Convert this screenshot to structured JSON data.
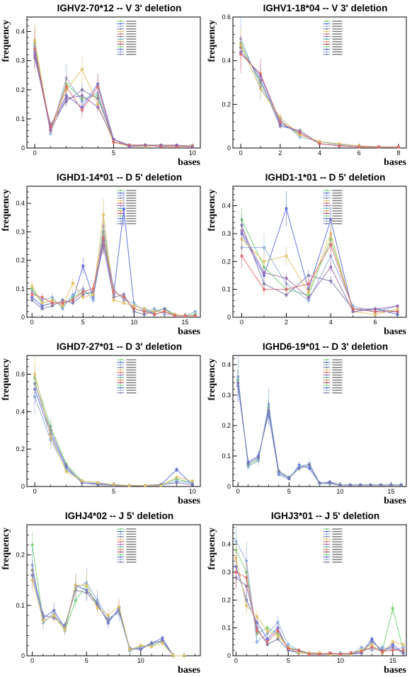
{
  "chart_data": [
    {
      "type": "line",
      "title": "IGHV2-70*12 -- V 3' deletion",
      "xlabel": "bases",
      "ylabel": "frequency",
      "xlim": [
        -0.5,
        10.5
      ],
      "ylim": [
        0,
        0.45
      ],
      "xticks": [
        0,
        5,
        10
      ],
      "yticks": [
        0,
        0.1,
        0.2,
        0.3,
        0.4
      ],
      "legend_position": "top-right",
      "x": [
        0,
        1,
        2,
        3,
        4,
        5,
        6,
        7,
        8,
        9,
        10
      ],
      "series": [
        {
          "values": [
            0.36,
            0.06,
            0.22,
            0.17,
            0.18,
            0.02,
            0.01,
            0.01,
            0.01,
            0.005,
            0.005
          ]
        },
        {
          "values": [
            0.33,
            0.07,
            0.18,
            0.14,
            0.22,
            0.03,
            0.005,
            0.01,
            0.005,
            0.005,
            0.01
          ]
        },
        {
          "values": [
            0.35,
            0.05,
            0.24,
            0.16,
            0.19,
            0.02,
            0.01,
            0.005,
            0.01,
            0.005,
            0.005
          ]
        },
        {
          "values": [
            0.31,
            0.08,
            0.16,
            0.2,
            0.17,
            0.03,
            0.01,
            0.01,
            0.005,
            0.01,
            0.005
          ]
        },
        {
          "values": [
            0.37,
            0.06,
            0.2,
            0.27,
            0.15,
            0.02,
            0.005,
            0.005,
            0.01,
            0.005,
            0.01
          ]
        },
        {
          "values": [
            0.34,
            0.07,
            0.21,
            0.13,
            0.21,
            0.02,
            0.01,
            0.01,
            0.005,
            0.005,
            0.005
          ]
        },
        {
          "values": [
            0.32,
            0.06,
            0.17,
            0.18,
            0.14,
            0.03,
            0.005,
            0.01,
            0.01,
            0.01,
            0.005
          ]
        }
      ]
    },
    {
      "type": "line",
      "title": "IGHV1-18*04 -- V 3' deletion",
      "xlabel": "bases",
      "ylabel": "frequency",
      "xlim": [
        -0.4,
        8.4
      ],
      "ylim": [
        0,
        0.6
      ],
      "xticks": [
        0,
        2,
        4,
        6,
        8
      ],
      "yticks": [
        0,
        0.2,
        0.4,
        0.6
      ],
      "legend_position": "top-right",
      "x": [
        0,
        1,
        2,
        3,
        4,
        5,
        6,
        7,
        8
      ],
      "series": [
        {
          "values": [
            0.48,
            0.3,
            0.12,
            0.06,
            0.03,
            0.015,
            0.01,
            0.005,
            0.005
          ]
        },
        {
          "values": [
            0.44,
            0.33,
            0.11,
            0.07,
            0.02,
            0.01,
            0.005,
            0.005,
            0.005
          ]
        },
        {
          "values": [
            0.5,
            0.28,
            0.13,
            0.05,
            0.03,
            0.015,
            0.01,
            0.005,
            0.005
          ]
        },
        {
          "values": [
            0.46,
            0.31,
            0.1,
            0.08,
            0.02,
            0.01,
            0.005,
            0.005,
            0.005
          ]
        },
        {
          "values": [
            0.47,
            0.27,
            0.14,
            0.06,
            0.03,
            0.02,
            0.01,
            0.005,
            0.005
          ]
        },
        {
          "values": [
            0.43,
            0.34,
            0.12,
            0.07,
            0.02,
            0.01,
            0.005,
            0.005,
            0.005
          ]
        }
      ]
    },
    {
      "type": "line",
      "title": "IGHD1-14*01 -- D 5' deletion",
      "xlabel": "bases",
      "ylabel": "frequency",
      "xlim": [
        -0.5,
        16.5
      ],
      "ylim": [
        0,
        0.46
      ],
      "xticks": [
        0,
        5,
        10,
        15
      ],
      "yticks": [
        0,
        0.1,
        0.2,
        0.3,
        0.4
      ],
      "legend_position": "top-right",
      "x": [
        0,
        1,
        2,
        3,
        4,
        5,
        6,
        7,
        8,
        9,
        10,
        11,
        12,
        13,
        14,
        15,
        16
      ],
      "series": [
        {
          "values": [
            0.1,
            0.05,
            0.06,
            0.04,
            0.07,
            0.09,
            0.08,
            0.3,
            0.09,
            0.07,
            0.03,
            0.02,
            0.02,
            0.03,
            0.01,
            0.005,
            0.01
          ]
        },
        {
          "values": [
            0.07,
            0.04,
            0.05,
            0.05,
            0.06,
            0.18,
            0.07,
            0.27,
            0.08,
            0.38,
            0.04,
            0.03,
            0.01,
            0.02,
            0.005,
            0.005,
            0.005
          ]
        },
        {
          "values": [
            0.09,
            0.06,
            0.07,
            0.03,
            0.08,
            0.1,
            0.06,
            0.32,
            0.1,
            0.06,
            0.05,
            0.02,
            0.03,
            0.01,
            0.01,
            0.005,
            0.02
          ]
        },
        {
          "values": [
            0.06,
            0.03,
            0.04,
            0.06,
            0.05,
            0.08,
            0.09,
            0.25,
            0.07,
            0.08,
            0.02,
            0.01,
            0.02,
            0.03,
            0.005,
            0.005,
            0.005
          ]
        },
        {
          "values": [
            0.11,
            0.05,
            0.06,
            0.04,
            0.12,
            0.07,
            0.08,
            0.36,
            0.06,
            0.05,
            0.04,
            0.03,
            0.02,
            0.02,
            0.01,
            0.005,
            0.005
          ]
        },
        {
          "values": [
            0.08,
            0.07,
            0.05,
            0.05,
            0.06,
            0.09,
            0.1,
            0.28,
            0.09,
            0.07,
            0.03,
            0.02,
            0.01,
            0.02,
            0.005,
            0.005,
            0.005
          ]
        }
      ]
    },
    {
      "type": "line",
      "title": "IGHD1-1*01 -- D 5' deletion",
      "xlabel": "bases",
      "ylabel": "frequency",
      "xlim": [
        -0.4,
        7.4
      ],
      "ylim": [
        0,
        0.47
      ],
      "xticks": [
        0,
        2,
        4,
        6
      ],
      "yticks": [
        0,
        0.1,
        0.2,
        0.3,
        0.4
      ],
      "legend_position": "top-right",
      "x": [
        0,
        1,
        2,
        3,
        4,
        5,
        6,
        7
      ],
      "series": [
        {
          "values": [
            0.35,
            0.18,
            0.1,
            0.08,
            0.28,
            0.03,
            0.02,
            0.02
          ]
        },
        {
          "values": [
            0.3,
            0.15,
            0.39,
            0.1,
            0.35,
            0.02,
            0.03,
            0.01
          ]
        },
        {
          "values": [
            0.25,
            0.25,
            0.12,
            0.06,
            0.22,
            0.04,
            0.02,
            0.04
          ]
        },
        {
          "values": [
            0.33,
            0.12,
            0.08,
            0.15,
            0.13,
            0.03,
            0.03,
            0.02
          ]
        },
        {
          "values": [
            0.28,
            0.2,
            0.22,
            0.09,
            0.3,
            0.02,
            0.01,
            0.03
          ]
        },
        {
          "values": [
            0.22,
            0.1,
            0.1,
            0.12,
            0.26,
            0.03,
            0.02,
            0.02
          ]
        },
        {
          "values": [
            0.31,
            0.16,
            0.14,
            0.07,
            0.18,
            0.02,
            0.03,
            0.04
          ]
        }
      ]
    },
    {
      "type": "line",
      "title": "IGHD7-27*01 -- D 3' deletion",
      "xlabel": "bases",
      "ylabel": "frequency",
      "xlim": [
        -0.5,
        10.5
      ],
      "ylim": [
        0,
        0.7
      ],
      "xticks": [
        0,
        5,
        10
      ],
      "yticks": [
        0,
        0.2,
        0.4,
        0.6
      ],
      "legend_position": "top-right",
      "x": [
        0,
        1,
        2,
        3,
        4,
        5,
        6,
        7,
        8,
        9,
        10
      ],
      "series": [
        {
          "values": [
            0.58,
            0.32,
            0.12,
            0.03,
            0.02,
            0.01,
            0.005,
            0.005,
            0.01,
            0.04,
            0.02
          ]
        },
        {
          "values": [
            0.52,
            0.28,
            0.1,
            0.02,
            0.015,
            0.01,
            0.005,
            0.005,
            0.01,
            0.09,
            0.01
          ]
        },
        {
          "values": [
            0.48,
            0.25,
            0.09,
            0.03,
            0.02,
            0.01,
            0.005,
            0.005,
            0.005,
            0.03,
            0.02
          ]
        },
        {
          "values": [
            0.55,
            0.3,
            0.11,
            0.02,
            0.01,
            0.005,
            0.005,
            0.005,
            0.01,
            0.02,
            0.01
          ]
        },
        {
          "values": [
            0.6,
            0.27,
            0.08,
            0.03,
            0.02,
            0.01,
            0.005,
            0.005,
            0.005,
            0.05,
            0.03
          ]
        }
      ]
    },
    {
      "type": "line",
      "title": "IGHD6-19*01 -- D 3' deletion",
      "xlabel": "bases",
      "ylabel": "frequency",
      "xlim": [
        -0.5,
        16.5
      ],
      "ylim": [
        0,
        0.43
      ],
      "xticks": [
        0,
        5,
        10,
        15
      ],
      "yticks": [
        0,
        0.1,
        0.2,
        0.3,
        0.4
      ],
      "legend_position": "top-right",
      "x": [
        0,
        1,
        2,
        3,
        4,
        5,
        6,
        7,
        8,
        9,
        10,
        11,
        12,
        13,
        14,
        15,
        16
      ],
      "series": [
        {
          "values": [
            0.35,
            0.07,
            0.09,
            0.26,
            0.05,
            0.03,
            0.06,
            0.07,
            0.01,
            0.01,
            0.005,
            0.005,
            0.005,
            0.005,
            0.005,
            0.005,
            0.005
          ]
        },
        {
          "values": [
            0.33,
            0.08,
            0.1,
            0.24,
            0.04,
            0.025,
            0.07,
            0.06,
            0.01,
            0.015,
            0.005,
            0.005,
            0.005,
            0.005,
            0.005,
            0.005,
            0.005
          ]
        },
        {
          "values": [
            0.36,
            0.065,
            0.085,
            0.27,
            0.045,
            0.03,
            0.065,
            0.075,
            0.01,
            0.01,
            0.005,
            0.005,
            0.005,
            0.005,
            0.005,
            0.005,
            0.005
          ]
        },
        {
          "values": [
            0.34,
            0.075,
            0.095,
            0.25,
            0.05,
            0.028,
            0.06,
            0.07,
            0.012,
            0.012,
            0.005,
            0.005,
            0.005,
            0.005,
            0.005,
            0.005,
            0.005
          ]
        }
      ]
    },
    {
      "type": "line",
      "title": "IGHJ4*02 -- J 5' deletion",
      "xlabel": "bases",
      "ylabel": "frequency",
      "xlim": [
        -0.5,
        15.5
      ],
      "ylim": [
        0,
        0.26
      ],
      "xticks": [
        0,
        5,
        10
      ],
      "yticks": [
        0,
        0.1,
        0.2
      ],
      "legend_position": "top-right",
      "x": [
        0,
        1,
        2,
        3,
        4,
        5,
        6,
        7,
        8,
        9,
        10,
        11,
        12,
        13,
        14
      ],
      "series": [
        {
          "values": [
            0.22,
            0.07,
            0.08,
            0.05,
            0.11,
            0.14,
            0.1,
            0.07,
            0.09,
            0.01,
            0.02,
            0.02,
            0.03,
            0.0,
            0.0
          ]
        },
        {
          "values": [
            0.16,
            0.075,
            0.09,
            0.055,
            0.14,
            0.13,
            0.105,
            0.065,
            0.095,
            0.012,
            0.015,
            0.025,
            0.035,
            0.0,
            0.0
          ]
        },
        {
          "values": [
            0.18,
            0.065,
            0.085,
            0.05,
            0.135,
            0.145,
            0.11,
            0.075,
            0.085,
            0.01,
            0.018,
            0.022,
            0.028,
            0.0,
            0.0
          ]
        },
        {
          "values": [
            0.17,
            0.08,
            0.075,
            0.06,
            0.13,
            0.125,
            0.1,
            0.07,
            0.09,
            0.015,
            0.012,
            0.025,
            0.03,
            0.0,
            0.0
          ]
        },
        {
          "values": [
            0.15,
            0.07,
            0.08,
            0.052,
            0.14,
            0.14,
            0.095,
            0.08,
            0.098,
            0.012,
            0.02,
            0.018,
            0.025,
            0.0,
            0.0
          ]
        }
      ]
    },
    {
      "type": "line",
      "title": "IGHJ3*01 -- J 5' deletion",
      "xlabel": "bases",
      "ylabel": "frequency",
      "xlim": [
        -0.3,
        16.3
      ],
      "ylim": [
        0,
        0.47
      ],
      "xticks": [
        0,
        5,
        10,
        15
      ],
      "yticks": [
        0,
        0.1,
        0.2,
        0.3,
        0.4
      ],
      "legend_position": "top-right",
      "x": [
        0,
        1,
        2,
        3,
        4,
        5,
        6,
        7,
        8,
        9,
        10,
        11,
        12,
        13,
        14,
        15,
        16
      ],
      "series": [
        {
          "values": [
            0.38,
            0.3,
            0.08,
            0.1,
            0.08,
            0.03,
            0.02,
            0.01,
            0.01,
            0.005,
            0.005,
            0.01,
            0.02,
            0.03,
            0.02,
            0.17,
            0.02
          ]
        },
        {
          "values": [
            0.32,
            0.2,
            0.12,
            0.06,
            0.1,
            0.02,
            0.01,
            0.01,
            0.005,
            0.01,
            0.005,
            0.005,
            0.01,
            0.06,
            0.01,
            0.04,
            0.01
          ]
        },
        {
          "values": [
            0.41,
            0.34,
            0.05,
            0.08,
            0.12,
            0.04,
            0.02,
            0.005,
            0.01,
            0.005,
            0.01,
            0.005,
            0.03,
            0.02,
            0.03,
            0.02,
            0.03
          ]
        },
        {
          "values": [
            0.28,
            0.25,
            0.1,
            0.04,
            0.06,
            0.02,
            0.015,
            0.01,
            0.005,
            0.005,
            0.005,
            0.01,
            0.01,
            0.05,
            0.02,
            0.03,
            0.01
          ]
        },
        {
          "values": [
            0.35,
            0.18,
            0.14,
            0.09,
            0.07,
            0.03,
            0.01,
            0.01,
            0.01,
            0.005,
            0.005,
            0.005,
            0.02,
            0.04,
            0.01,
            0.05,
            0.04
          ]
        },
        {
          "values": [
            0.3,
            0.28,
            0.09,
            0.05,
            0.09,
            0.025,
            0.02,
            0.005,
            0.005,
            0.01,
            0.005,
            0.01,
            0.015,
            0.03,
            0.015,
            0.02,
            0.02
          ]
        }
      ]
    }
  ],
  "palette": [
    "#6fcf6f",
    "#5566dd",
    "#88aadd",
    "#7777aa",
    "#e0c060",
    "#dd6666",
    "#9966aa",
    "#55aaaa",
    "#cc8844",
    "#aa4466"
  ]
}
